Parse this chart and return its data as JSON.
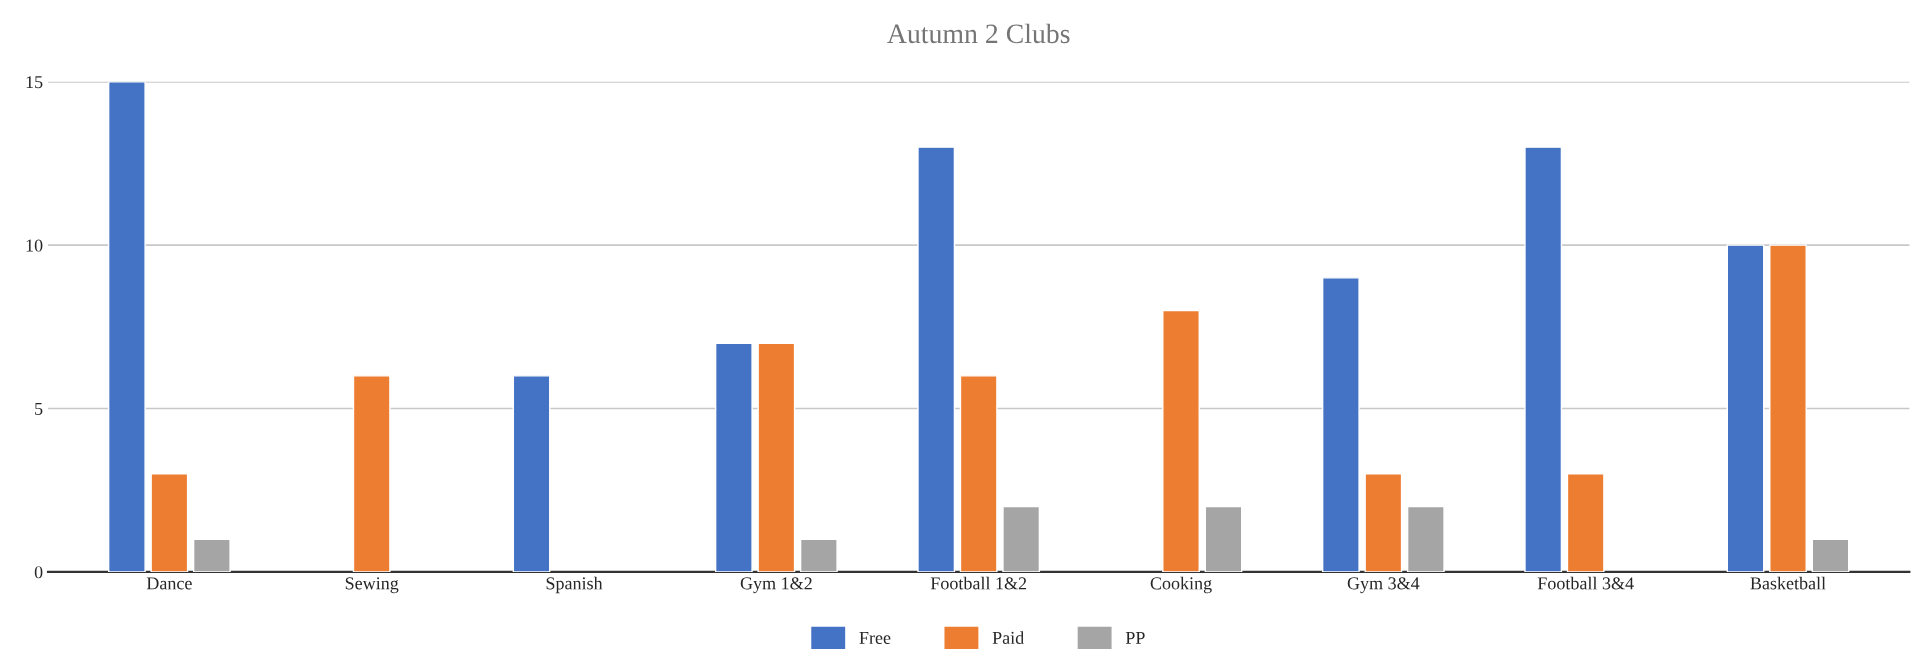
{
  "chart_data": {
    "type": "bar",
    "title": "Autumn 2 Clubs",
    "categories": [
      "Dance",
      "Sewing",
      "Spanish",
      "Gym 1&2",
      "Football 1&2",
      "Cooking",
      "Gym 3&4",
      "Football 3&4",
      "Basketball"
    ],
    "series": [
      {
        "name": "Free",
        "color": "#4472c4",
        "values": [
          15,
          null,
          6,
          7,
          13,
          null,
          9,
          13,
          10
        ]
      },
      {
        "name": "Paid",
        "color": "#ed7d31",
        "values": [
          3,
          6,
          null,
          7,
          6,
          8,
          3,
          3,
          10
        ]
      },
      {
        "name": "PP",
        "color": "#a5a5a5",
        "values": [
          1,
          null,
          null,
          1,
          2,
          2,
          2,
          null,
          1
        ]
      }
    ],
    "ylim": [
      0,
      15
    ],
    "yticks": [
      0,
      5,
      10,
      15
    ],
    "grid": "y",
    "legend": "bottom"
  }
}
